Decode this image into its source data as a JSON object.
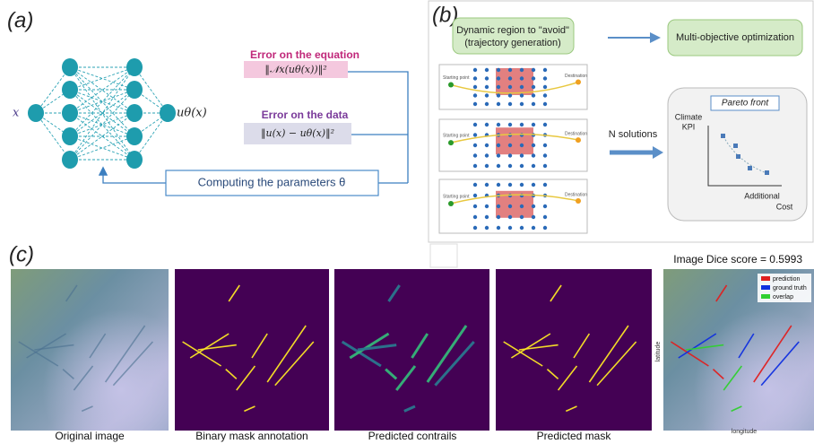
{
  "panel_a": {
    "label": "(a)",
    "input": "x",
    "output": "uθ(x)",
    "error_equation": {
      "title": "Error on the equation",
      "formula": "‖𝒩x(uθ(x))‖²"
    },
    "error_data": {
      "title": "Error on the data",
      "formula": "‖u(x) − uθ(x)‖²"
    },
    "feedback": "Computing the parameters θ"
  },
  "panel_b": {
    "label": "(b)",
    "box1": [
      "Dynamic region to \"avoid\"",
      "(trajectory generation)"
    ],
    "box2": "Multi-objective optimization",
    "n_solutions": "N solutions",
    "start": "Starting point",
    "destination": "Destination",
    "pareto": {
      "title": "Pareto front",
      "y_label": [
        "Climate",
        "KPI"
      ],
      "x_label": [
        "Additional",
        "Cost"
      ]
    }
  },
  "panel_c": {
    "label": "(c)",
    "dice": "Image Dice score = 0.5993",
    "captions": [
      "Original image",
      "Binary mask annotation",
      "Predicted contrails",
      "Predicted mask"
    ],
    "legend": [
      "prediction",
      "ground truth",
      "overlap"
    ],
    "y_label": "latitude",
    "x_label": "longitude"
  }
}
